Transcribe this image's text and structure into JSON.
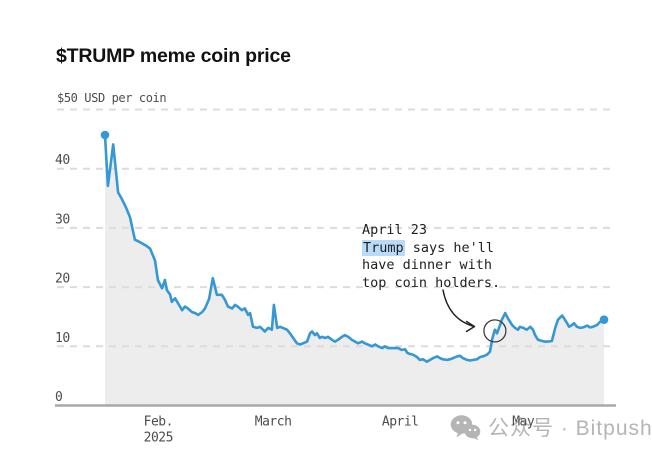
{
  "header": {
    "title": "$TRUMP meme coin price"
  },
  "watermark": {
    "icon": "wechat-icon",
    "text": "公众号 · Bitpush"
  },
  "chart_data": {
    "type": "area",
    "title": "$TRUMP meme coin price",
    "y_axis_top_label": "$50 USD per coin",
    "ylim": [
      0,
      50
    ],
    "y_tick_labels": [
      0,
      10,
      20,
      30,
      40
    ],
    "grid_values": [
      10,
      20,
      30,
      40,
      50
    ],
    "grid_on": true,
    "x_unit": "days from first plotted point (mid-January 2025)",
    "x_ticks": [
      {
        "label": "Feb.",
        "sublabel": "2025",
        "day": 13
      },
      {
        "label": "March",
        "day": 41
      },
      {
        "label": "April",
        "day": 72
      },
      {
        "label": "May",
        "day": 102
      }
    ],
    "series_name": "$TRUMP price, USD per coin",
    "points": [
      [
        0,
        45.7
      ],
      [
        0.7,
        37.1
      ],
      [
        2,
        44.1
      ],
      [
        3.2,
        36
      ],
      [
        4.1,
        34.9
      ],
      [
        5.1,
        33.5
      ],
      [
        6.1,
        31.8
      ],
      [
        7.3,
        28
      ],
      [
        8.5,
        27.6
      ],
      [
        9.8,
        27.1
      ],
      [
        11,
        26.5
      ],
      [
        12.2,
        24.5
      ],
      [
        12.9,
        21.2
      ],
      [
        13.9,
        19.8
      ],
      [
        14.6,
        21.2
      ],
      [
        15.1,
        19.5
      ],
      [
        15.9,
        18.7
      ],
      [
        16.3,
        17.5
      ],
      [
        17.1,
        18.1
      ],
      [
        17.6,
        17.5
      ],
      [
        18.3,
        16.7
      ],
      [
        18.8,
        16.1
      ],
      [
        19.5,
        16.7
      ],
      [
        20.2,
        16.4
      ],
      [
        21.2,
        15.8
      ],
      [
        22,
        15.6
      ],
      [
        22.7,
        15.3
      ],
      [
        23.7,
        15.8
      ],
      [
        24.4,
        16.4
      ],
      [
        25.4,
        18
      ],
      [
        26.3,
        21.5
      ],
      [
        27.3,
        18.7
      ],
      [
        28.5,
        18.7
      ],
      [
        29.3,
        17.8
      ],
      [
        30,
        16.7
      ],
      [
        31,
        16.4
      ],
      [
        31.7,
        17
      ],
      [
        32.4,
        16.7
      ],
      [
        33.4,
        16.1
      ],
      [
        34.1,
        16.4
      ],
      [
        34.9,
        15.3
      ],
      [
        35.4,
        15.6
      ],
      [
        36.1,
        13.3
      ],
      [
        37.1,
        13.1
      ],
      [
        37.8,
        13.3
      ],
      [
        39,
        12.5
      ],
      [
        39.8,
        13.1
      ],
      [
        40.7,
        12.8
      ],
      [
        41.2,
        17
      ],
      [
        42,
        13.1
      ],
      [
        42.7,
        13.3
      ],
      [
        43.4,
        13.1
      ],
      [
        44.4,
        12.8
      ],
      [
        45.1,
        12.2
      ],
      [
        45.9,
        11.4
      ],
      [
        46.8,
        10.5
      ],
      [
        47.6,
        10.3
      ],
      [
        48.3,
        10.5
      ],
      [
        49.3,
        10.8
      ],
      [
        50,
        12.2
      ],
      [
        50.5,
        12.5
      ],
      [
        51.2,
        11.9
      ],
      [
        51.7,
        12.2
      ],
      [
        52.4,
        11.4
      ],
      [
        52.9,
        11.6
      ],
      [
        53.7,
        11.4
      ],
      [
        54.4,
        11.6
      ],
      [
        55.4,
        11.1
      ],
      [
        56.1,
        10.8
      ],
      [
        56.8,
        11.1
      ],
      [
        57.8,
        11.6
      ],
      [
        58.5,
        11.9
      ],
      [
        59.3,
        11.6
      ],
      [
        60.2,
        11.1
      ],
      [
        61,
        10.8
      ],
      [
        61.7,
        10.5
      ],
      [
        62.7,
        10.8
      ],
      [
        63.4,
        10.5
      ],
      [
        64.1,
        10.3
      ],
      [
        65.1,
        10
      ],
      [
        65.9,
        10.3
      ],
      [
        66.6,
        10
      ],
      [
        67.6,
        9.7
      ],
      [
        68.3,
        10
      ],
      [
        69,
        9.7
      ],
      [
        70.2,
        9.7
      ],
      [
        71.5,
        9.7
      ],
      [
        72.4,
        9.4
      ],
      [
        73.2,
        9.5
      ],
      [
        73.7,
        8.9
      ],
      [
        74.4,
        8.7
      ],
      [
        75.1,
        8.6
      ],
      [
        76.1,
        8.2
      ],
      [
        76.8,
        7.7
      ],
      [
        77.6,
        7.8
      ],
      [
        78.5,
        7.4
      ],
      [
        79.3,
        7.7
      ],
      [
        80,
        8
      ],
      [
        81,
        8.3
      ],
      [
        81.7,
        8
      ],
      [
        82.4,
        7.8
      ],
      [
        83.4,
        7.7
      ],
      [
        84.1,
        7.8
      ],
      [
        84.9,
        8
      ],
      [
        85.9,
        8.3
      ],
      [
        86.6,
        8.4
      ],
      [
        87.3,
        8
      ],
      [
        88.3,
        7.7
      ],
      [
        89,
        7.6
      ],
      [
        89.8,
        7.7
      ],
      [
        90.7,
        7.8
      ],
      [
        91.5,
        8.2
      ],
      [
        92.2,
        8.3
      ],
      [
        93.2,
        8.6
      ],
      [
        93.9,
        9.1
      ],
      [
        94.4,
        11.1
      ],
      [
        94.9,
        12.4
      ],
      [
        95.1,
        12.8
      ],
      [
        95.4,
        12.5
      ],
      [
        95.6,
        12.2
      ],
      [
        96.1,
        13.1
      ],
      [
        96.8,
        14.5
      ],
      [
        97.6,
        15.6
      ],
      [
        98.3,
        14.7
      ],
      [
        99.3,
        13.6
      ],
      [
        100,
        13.1
      ],
      [
        100.7,
        12.8
      ],
      [
        101.2,
        13.3
      ],
      [
        102,
        13.1
      ],
      [
        102.9,
        12.8
      ],
      [
        103.7,
        13.3
      ],
      [
        104.4,
        12.8
      ],
      [
        104.9,
        11.9
      ],
      [
        105.6,
        11.1
      ],
      [
        106.6,
        10.9
      ],
      [
        107.3,
        10.8
      ],
      [
        108,
        10.8
      ],
      [
        109,
        10.9
      ],
      [
        109.8,
        13.1
      ],
      [
        110.5,
        14.5
      ],
      [
        111.5,
        15.2
      ],
      [
        112,
        14.7
      ],
      [
        112.7,
        13.9
      ],
      [
        113.2,
        13.3
      ],
      [
        113.9,
        13.6
      ],
      [
        114.4,
        13.9
      ],
      [
        115.1,
        13.3
      ],
      [
        115.9,
        13.1
      ],
      [
        116.6,
        13.2
      ],
      [
        117.6,
        13.5
      ],
      [
        118.3,
        13.2
      ],
      [
        119,
        13.3
      ],
      [
        120,
        13.6
      ],
      [
        120.7,
        14.1
      ],
      [
        121.7,
        14.5
      ]
    ],
    "endpoint_markers": {
      "first_value": 45.7,
      "last_value": 14.5
    },
    "annotation": {
      "heading": "April 23",
      "line1_highlight": "Trump",
      "line1_rest": " says he'll",
      "line2": "have dinner with",
      "line3": "top coin holders.",
      "target_day": 95.1,
      "target_price": 12.6
    },
    "colors": {
      "line": "#3598d4",
      "area_fill": "#ededed",
      "grid": "#dcdcdc",
      "axis_baseline": "#a8a8a8",
      "tick_text": "#4d4d4d",
      "annotation_text": "#1f1f1f",
      "annotation_highlight": "#b9dbf7",
      "watermark": "#b5b5b5"
    }
  }
}
